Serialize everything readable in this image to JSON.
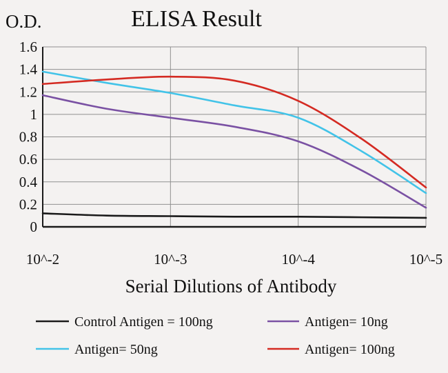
{
  "title": "ELISA Result",
  "y_axis_label": "O.D.",
  "x_axis_label": "Serial Dilutions of Antibody",
  "chart_data": {
    "type": "line",
    "title": "ELISA Result",
    "xlabel": "Serial Dilutions of Antibody",
    "ylabel": "O.D.",
    "ylim": [
      0,
      1.6
    ],
    "grid": true,
    "legend_position": "bottom",
    "x_tick_labels": [
      "10^-2",
      "10^-3",
      "10^-4",
      "10^-5"
    ],
    "y_tick_labels": [
      "1.6",
      "1.4",
      "1.2",
      "1",
      "0.8",
      "0.6",
      "0.4",
      "0.2",
      "0"
    ],
    "x_exponents": [
      -2,
      -2.5,
      -3,
      -3.5,
      -4,
      -4.5,
      -5
    ],
    "series": [
      {
        "name": "Control Antigen = 100ng",
        "color": "#1a1a1a",
        "od_values": [
          0.12,
          0.1,
          0.095,
          0.09,
          0.09,
          0.085,
          0.08
        ]
      },
      {
        "name": "Antigen= 10ng",
        "color": "#7a51a3",
        "od_values": [
          1.17,
          1.05,
          0.97,
          0.89,
          0.76,
          0.5,
          0.17
        ]
      },
      {
        "name": "Antigen= 50ng",
        "color": "#42c3e8",
        "od_values": [
          1.38,
          1.28,
          1.19,
          1.08,
          0.97,
          0.67,
          0.3
        ]
      },
      {
        "name": "Antigen= 100ng",
        "color": "#d42a22",
        "od_values": [
          1.27,
          1.31,
          1.335,
          1.3,
          1.12,
          0.78,
          0.35
        ]
      }
    ]
  },
  "legend": {
    "items": [
      {
        "label": "Control Antigen = 100ng",
        "color": "#1a1a1a"
      },
      {
        "label": "Antigen= 10ng",
        "color": "#7a51a3"
      },
      {
        "label": "Antigen= 50ng",
        "color": "#42c3e8"
      },
      {
        "label": "Antigen= 100ng",
        "color": "#d42a22"
      }
    ]
  },
  "style": {
    "grid_color": "#8f8f8f",
    "axis_color": "#1a1a1a",
    "background": "#f4f2f1"
  }
}
